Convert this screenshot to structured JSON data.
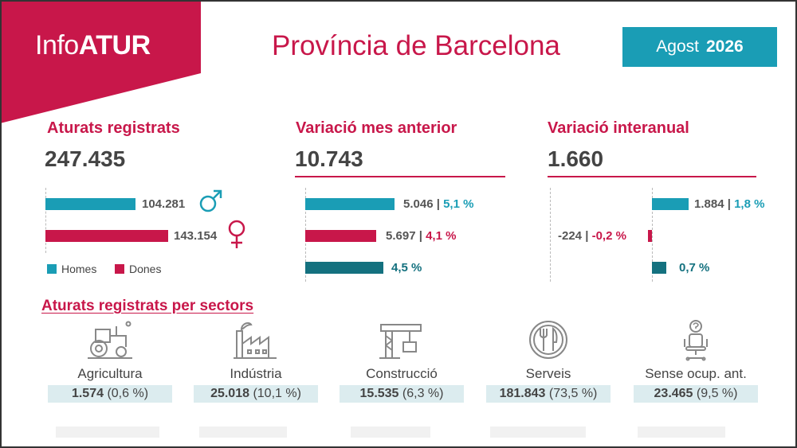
{
  "header": {
    "logo_prefix": "Info",
    "logo_bold": "ATUR",
    "title": "Província de Barcelona",
    "month": "Agost",
    "year": "2026"
  },
  "panels": {
    "registered": {
      "title": "Aturats registrats",
      "total": "247.435",
      "men_value": "104.281",
      "women_value": "143.154",
      "men_fraction": 0.42,
      "women_fraction": 0.58,
      "legend_men": "Homes",
      "legend_women": "Dones"
    },
    "monthly": {
      "title": "Variació mes anterior",
      "total": "10.743",
      "men_value": "5.046",
      "men_pct": "5,1 %",
      "women_value": "5.697",
      "women_pct": "4,1 %",
      "total_pct": "4,5 %"
    },
    "yearly": {
      "title": "Variació interanual",
      "total": "1.660",
      "men_value": "1.884",
      "men_pct": "1,8 %",
      "women_value": "-224",
      "women_pct": "-0,2 %",
      "total_pct": "0,7 %"
    }
  },
  "sectors": {
    "title": "Aturats registrats per sectors",
    "items": [
      {
        "icon": "tractor-icon",
        "name": "Agricultura",
        "value": "1.574",
        "pct": "(0,6 %)"
      },
      {
        "icon": "factory-icon",
        "name": "Indústria",
        "value": "25.018",
        "pct": "(10,1 %)"
      },
      {
        "icon": "crane-icon",
        "name": "Construcció",
        "value": "15.535",
        "pct": "(6,3 %)"
      },
      {
        "icon": "cutlery-icon",
        "name": "Serveis",
        "value": "181.843",
        "pct": "(73,5 %)"
      },
      {
        "icon": "office-chair-question-icon",
        "name": "Sense ocup. ant.",
        "value": "23.465",
        "pct": "(9,5 %)"
      }
    ]
  },
  "colors": {
    "brand_red": "#c8174a",
    "teal": "#1a9db5",
    "dark_teal": "#14717f",
    "light_box": "#dcecef"
  }
}
